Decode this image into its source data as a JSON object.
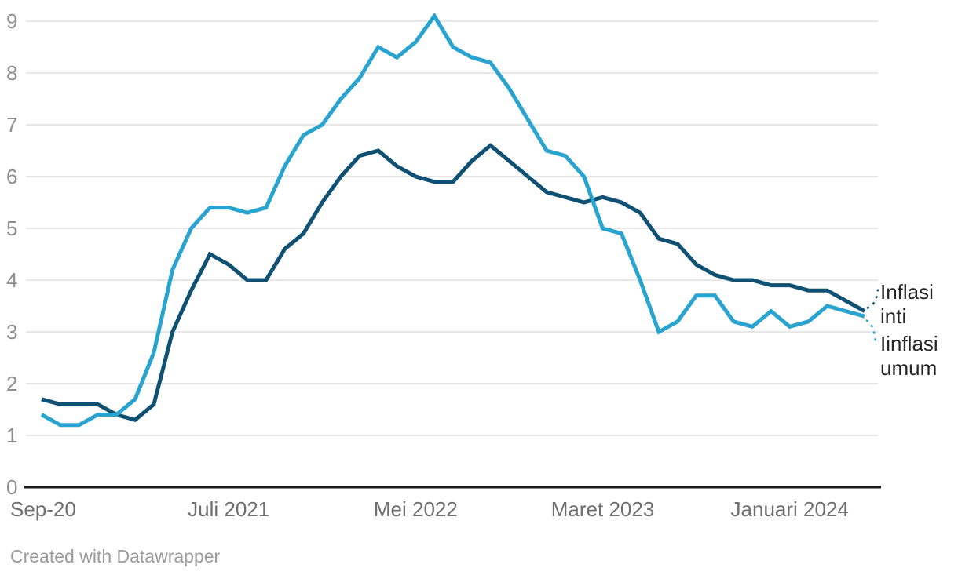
{
  "chart_data": {
    "type": "line",
    "title": "",
    "xlabel": "",
    "ylabel": "",
    "ylim": [
      0,
      9
    ],
    "grid": "horizontal",
    "legend_position": "right-end-labels",
    "yticks": [
      0,
      1,
      2,
      3,
      4,
      5,
      6,
      7,
      8,
      9
    ],
    "x_ticks": [
      {
        "label": "Sep-20",
        "index": 0
      },
      {
        "label": "Juli 2021",
        "index": 10
      },
      {
        "label": "Mei 2022",
        "index": 20
      },
      {
        "label": "Maret 2023",
        "index": 30
      },
      {
        "label": "Januari 2024",
        "index": 40
      }
    ],
    "months": [
      "2020-09",
      "2020-10",
      "2020-11",
      "2020-12",
      "2021-01",
      "2021-02",
      "2021-03",
      "2021-04",
      "2021-05",
      "2021-06",
      "2021-07",
      "2021-08",
      "2021-09",
      "2021-10",
      "2021-11",
      "2021-12",
      "2022-01",
      "2022-02",
      "2022-03",
      "2022-04",
      "2022-05",
      "2022-06",
      "2022-07",
      "2022-08",
      "2022-09",
      "2022-10",
      "2022-11",
      "2022-12",
      "2023-01",
      "2023-02",
      "2023-03",
      "2023-04",
      "2023-05",
      "2023-06",
      "2023-07",
      "2023-08",
      "2023-09",
      "2023-10",
      "2023-11",
      "2023-12",
      "2024-01",
      "2024-02",
      "2024-03",
      "2024-04",
      "2024-05"
    ],
    "series": [
      {
        "id": "inti",
        "name": "Inflasi inti",
        "color": "#0f5174",
        "values": [
          1.7,
          1.6,
          1.6,
          1.6,
          1.4,
          1.3,
          1.6,
          3.0,
          3.8,
          4.5,
          4.3,
          4.0,
          4.0,
          4.6,
          4.9,
          5.5,
          6.0,
          6.4,
          6.5,
          6.2,
          6.0,
          5.9,
          5.9,
          6.3,
          6.6,
          6.3,
          6.0,
          5.7,
          5.6,
          5.5,
          5.6,
          5.5,
          5.3,
          4.8,
          4.7,
          4.3,
          4.1,
          4.0,
          4.0,
          3.9,
          3.9,
          3.8,
          3.8,
          3.6,
          3.4
        ]
      },
      {
        "id": "umum",
        "name": "Iinflasi umum",
        "color": "#29a3cf",
        "values": [
          1.4,
          1.2,
          1.2,
          1.4,
          1.4,
          1.7,
          2.6,
          4.2,
          5.0,
          5.4,
          5.4,
          5.3,
          5.4,
          6.2,
          6.8,
          7.0,
          7.5,
          7.9,
          8.5,
          8.3,
          8.6,
          9.1,
          8.5,
          8.3,
          8.2,
          7.7,
          7.1,
          6.5,
          6.4,
          6.0,
          5.0,
          4.9,
          4.0,
          3.0,
          3.2,
          3.7,
          3.7,
          3.2,
          3.1,
          3.4,
          3.1,
          3.2,
          3.5,
          3.4,
          3.3
        ]
      }
    ]
  },
  "labels": {
    "series_inti": "Inflasi inti",
    "series_umum": "Iinflasi umum"
  },
  "footer": {
    "credit": "Created with Datawrapper"
  },
  "colors": {
    "gridline": "#e7e7e7",
    "axis_line": "#1a1a1a",
    "x_label": "#6f6f6f",
    "y_label": "#8e8e8e",
    "series_label": "#262626",
    "inti": "#0f5174",
    "umum": "#29a3cf"
  }
}
